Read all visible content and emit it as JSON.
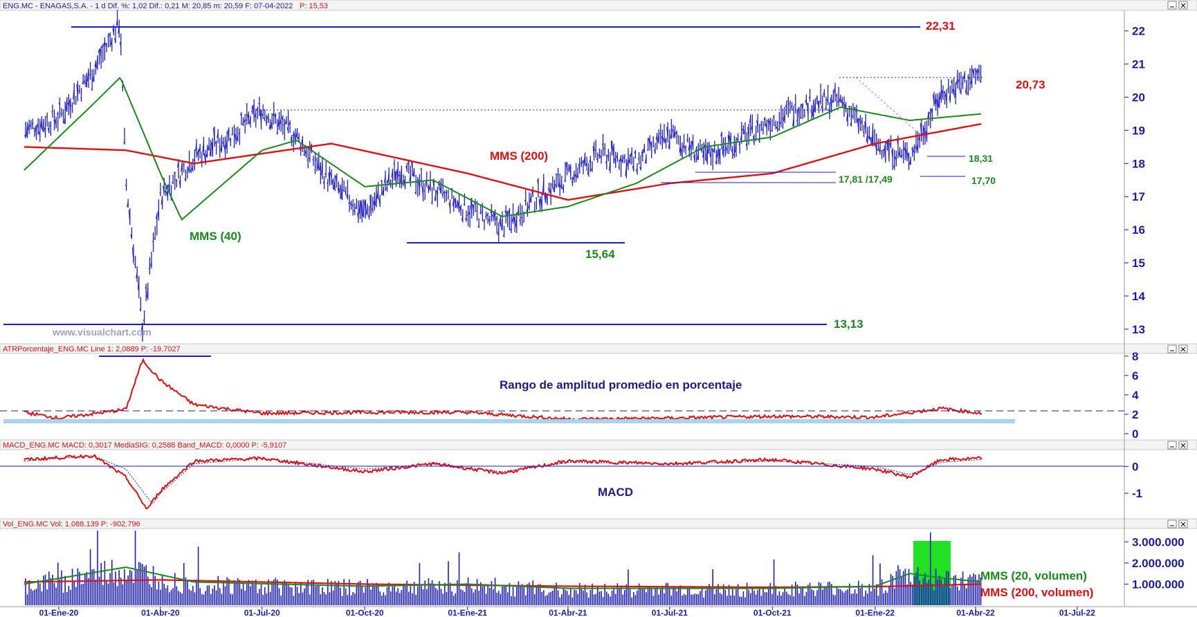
{
  "header": {
    "price": "ENG.MC - ENAGAS,S.A. -  1 d  Dif. %: 1,02  Dif.: 0,21  M: 20,85  m: 20,59  F: 07-04-2022",
    "price_p": "P: 15,53",
    "atr": "ATRPorcentaje_ENG.MC  Line 1: 2,0889  P: -19,7027",
    "macd": "MACD_ENG.MC  MACD: 0,3017  MediaSIG: 0,2588  Band_MACD: 0,0000  P: -5,9107",
    "vol": "Vol_ENG.MC  Vol: 1.088.139  P: -902.796"
  },
  "watermark": "www.visualchart.com",
  "colors": {
    "bars": "#1a1ad6",
    "sma200": "#e01010",
    "sma40": "#1a8a1a",
    "axis": "#1a1aa8",
    "highlight": "#22e022",
    "atr_band": "#a8d4f0"
  },
  "labels": {
    "l2231": "22,31",
    "l2073": "20,73",
    "l1831": "18,31",
    "l1770": "17,70",
    "l1781": "17,81 /17,49",
    "l1564": "15,64",
    "l1313": "13,13",
    "mms200": "MMS (200)",
    "mms40": "MMS (40)",
    "atr_title": "Rango de amplitud promedio en porcentaje",
    "macd_title": "MACD",
    "vol20": "MMS (20, volumen)",
    "vol200": "MMS (200, volumen)"
  },
  "chart_data": [
    {
      "type": "line",
      "panel": "price",
      "y_ticks": [
        "22",
        "21",
        "20",
        "19",
        "18",
        "17",
        "16",
        "15",
        "14",
        "13"
      ],
      "x_ticks": [
        "01-Ene-20",
        "01-Abr-20",
        "01-Jul-20",
        "01-Oct-20",
        "01-Ene-21",
        "01-Abr-21",
        "01-Jul-21",
        "01-Oct-21",
        "01-Ene-22",
        "01-Abr-22",
        "01-Jul-22"
      ],
      "ylim": [
        12.6,
        22.6
      ],
      "series": [
        {
          "name": "ENG.MC",
          "x": [
            "01-Dic-19",
            "01-Ene-20",
            "01-Feb-20",
            "25-Feb-20",
            "01-Mar-20",
            "16-Mar-20",
            "01-Abr-20",
            "01-May-20",
            "01-Jun-20",
            "01-Jul-20",
            "01-Ago-20",
            "01-Sep-20",
            "01-Oct-20",
            "01-Nov-20",
            "01-Dic-20",
            "01-Ene-21",
            "01-Feb-21",
            "01-Mar-21",
            "01-Abr-21",
            "01-May-21",
            "01-Jun-21",
            "01-Jul-21",
            "01-Ago-21",
            "01-Sep-21",
            "01-Oct-21",
            "01-Nov-21",
            "01-Dic-21",
            "01-Ene-22",
            "01-Feb-22",
            "01-Mar-22",
            "07-Abr-22"
          ],
          "values": [
            19.0,
            19.4,
            20.8,
            22.3,
            17.5,
            13.1,
            17.0,
            18.2,
            18.8,
            19.6,
            18.8,
            17.4,
            16.5,
            17.8,
            17.2,
            16.6,
            16.1,
            16.9,
            17.6,
            18.3,
            18.0,
            18.9,
            18.2,
            18.7,
            19.3,
            19.8,
            19.9,
            18.6,
            18.2,
            20.1,
            20.73
          ]
        },
        {
          "name": "MMS (40)",
          "x": [
            "01-Dic-19",
            "01-Feb-20",
            "25-Feb-20",
            "01-Abr-20",
            "20-Abr-20",
            "01-Jul-20",
            "01-Ago-20",
            "01-Oct-20",
            "01-Dic-20",
            "01-Feb-21",
            "01-Abr-21",
            "01-Jun-21",
            "01-Ago-21",
            "01-Oct-21",
            "01-Dic-21",
            "01-Feb-22",
            "07-Abr-22"
          ],
          "values": [
            17.8,
            19.8,
            20.6,
            17.7,
            16.3,
            18.4,
            18.7,
            17.3,
            17.5,
            16.4,
            16.7,
            17.4,
            18.5,
            18.8,
            19.7,
            19.3,
            19.5
          ]
        },
        {
          "name": "MMS (200)",
          "x": [
            "01-Dic-19",
            "01-Mar-20",
            "01-May-20",
            "01-Sep-20",
            "01-Ene-21",
            "01-Abr-21",
            "01-Jul-21",
            "01-Oct-21",
            "01-Ene-22",
            "07-Abr-22"
          ],
          "values": [
            18.5,
            18.4,
            18.0,
            18.6,
            17.7,
            16.9,
            17.4,
            17.7,
            18.6,
            19.2
          ]
        }
      ]
    },
    {
      "type": "line",
      "panel": "atr_percent",
      "y_ticks": [
        "8",
        "6",
        "4",
        "2",
        "0"
      ],
      "ylim": [
        -0.5,
        8.2
      ],
      "series": [
        {
          "name": "ATRPorcentaje_ENG.MC",
          "x": [
            "01-Dic-19",
            "01-Ene-20",
            "01-Mar-20",
            "16-Mar-20",
            "01-Abr-20",
            "01-May-20",
            "01-Jul-20",
            "01-Oct-20",
            "01-Ene-21",
            "01-Abr-21",
            "01-Jul-21",
            "01-Oct-21",
            "01-Ene-22",
            "01-Mar-22",
            "07-Abr-22"
          ],
          "values": [
            2.2,
            1.6,
            2.5,
            7.6,
            5.5,
            3.0,
            2.1,
            2.2,
            2.2,
            1.5,
            1.6,
            1.8,
            1.7,
            2.6,
            2.09
          ]
        }
      ]
    },
    {
      "type": "line",
      "panel": "macd",
      "y_ticks": [
        "0",
        "-1"
      ],
      "ylim": [
        -1.9,
        0.6
      ],
      "series": [
        {
          "name": "MACD",
          "x": [
            "01-Dic-19",
            "01-Feb-20",
            "01-Mar-20",
            "20-Mar-20",
            "01-Abr-20",
            "01-May-20",
            "01-Jul-20",
            "01-Oct-20",
            "01-Dic-20",
            "01-Feb-21",
            "01-Abr-21",
            "01-Jul-21",
            "01-Oct-21",
            "01-Ene-22",
            "01-Feb-22",
            "01-Mar-22",
            "07-Abr-22"
          ],
          "values": [
            0.25,
            0.4,
            -0.4,
            -1.6,
            -0.9,
            0.2,
            0.3,
            -0.2,
            0.1,
            -0.25,
            0.2,
            0.1,
            0.25,
            -0.1,
            -0.4,
            0.25,
            0.3
          ]
        },
        {
          "name": "MediaSIG",
          "x": [
            "01-Dic-19",
            "01-Feb-20",
            "01-Mar-20",
            "25-Mar-20",
            "01-Abr-20",
            "01-May-20",
            "01-Jul-20",
            "01-Oct-20",
            "01-Dic-20",
            "01-Feb-21",
            "01-Abr-21",
            "01-Jul-21",
            "01-Oct-21",
            "01-Ene-22",
            "01-Feb-22",
            "01-Mar-22",
            "07-Abr-22"
          ],
          "values": [
            0.2,
            0.4,
            -0.1,
            -1.4,
            -1.0,
            0.1,
            0.3,
            -0.1,
            0.1,
            -0.2,
            0.15,
            0.1,
            0.2,
            0.0,
            -0.3,
            0.15,
            0.26
          ]
        }
      ]
    },
    {
      "type": "bar",
      "panel": "volume",
      "y_ticks": [
        "3.000.000",
        "2.000.000",
        "1.000.000"
      ],
      "ylim": [
        0,
        3600000
      ],
      "last_volume": 1088139,
      "highlight_range": [
        "01-Ene-22",
        "01-Mar-22"
      ],
      "series": [
        {
          "name": "MMS (20, volumen)",
          "x": [
            "01-Dic-19",
            "01-Mar-20",
            "01-May-20",
            "01-Oct-20",
            "01-Ene-21",
            "01-Abr-21",
            "01-Oct-21",
            "01-Ene-22",
            "01-Feb-22",
            "01-Mar-22",
            "07-Abr-22"
          ],
          "values": [
            1000000,
            1800000,
            1100000,
            900000,
            1000000,
            800000,
            800000,
            900000,
            1500000,
            1300000,
            1100000
          ]
        },
        {
          "name": "MMS (200, volumen)",
          "x": [
            "01-Dic-19",
            "01-Abr-20",
            "01-Oct-20",
            "01-Abr-21",
            "01-Oct-21",
            "01-Ene-22",
            "07-Abr-22"
          ],
          "values": [
            1100000,
            1200000,
            1000000,
            900000,
            850000,
            880000,
            1000000
          ]
        }
      ]
    }
  ]
}
